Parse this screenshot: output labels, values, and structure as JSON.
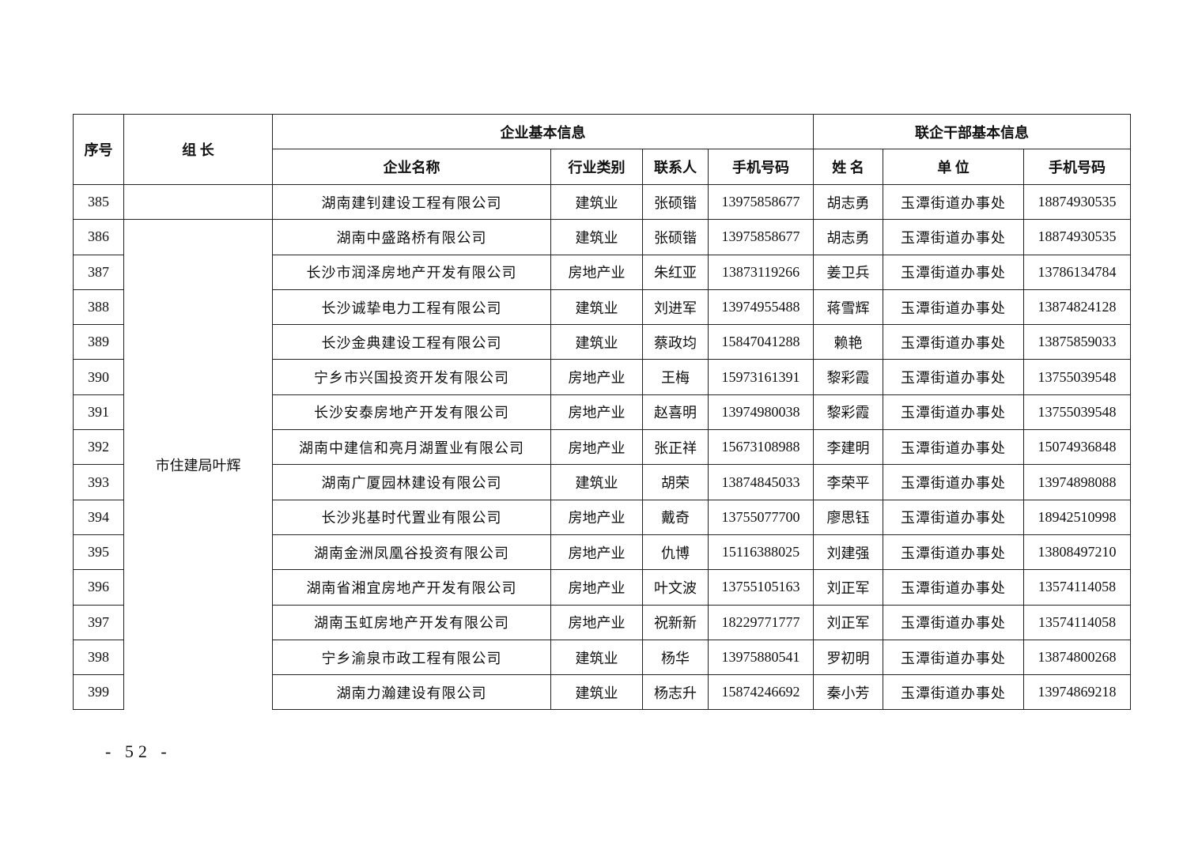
{
  "table": {
    "headers": {
      "seq": "序号",
      "leader": "组 长",
      "enterprise_group": "企业基本信息",
      "cadre_group": "联企干部基本信息",
      "company_name": "企业名称",
      "industry": "行业类别",
      "contact": "联系人",
      "company_phone": "手机号码",
      "cadre_name": "姓 名",
      "cadre_unit": "单 位",
      "cadre_phone": "手机号码"
    },
    "first_row": {
      "seq": "385",
      "leader": "",
      "company": "湖南建钊建设工程有限公司",
      "industry": "建筑业",
      "contact": "张硕锴",
      "phone": "13975858677",
      "cadre": "胡志勇",
      "unit": "玉潭街道办事处",
      "cadre_phone": "18874930535"
    },
    "group_leader": "市住建局叶辉",
    "rows": [
      {
        "seq": "386",
        "company": "湖南中盛路桥有限公司",
        "industry": "建筑业",
        "contact": "张硕锴",
        "phone": "13975858677",
        "cadre": "胡志勇",
        "unit": "玉潭街道办事处",
        "cadre_phone": "18874930535"
      },
      {
        "seq": "387",
        "company": "长沙市润泽房地产开发有限公司",
        "industry": "房地产业",
        "contact": "朱红亚",
        "phone": "13873119266",
        "cadre": "姜卫兵",
        "unit": "玉潭街道办事处",
        "cadre_phone": "13786134784"
      },
      {
        "seq": "388",
        "company": "长沙诚挚电力工程有限公司",
        "industry": "建筑业",
        "contact": "刘进军",
        "phone": "13974955488",
        "cadre": "蒋雪辉",
        "unit": "玉潭街道办事处",
        "cadre_phone": "13874824128"
      },
      {
        "seq": "389",
        "company": "长沙金典建设工程有限公司",
        "industry": "建筑业",
        "contact": "蔡政均",
        "phone": "15847041288",
        "cadre": "赖艳",
        "unit": "玉潭街道办事处",
        "cadre_phone": "13875859033"
      },
      {
        "seq": "390",
        "company": "宁乡市兴国投资开发有限公司",
        "industry": "房地产业",
        "contact": "王梅",
        "phone": "15973161391",
        "cadre": "黎彩霞",
        "unit": "玉潭街道办事处",
        "cadre_phone": "13755039548"
      },
      {
        "seq": "391",
        "company": "长沙安泰房地产开发有限公司",
        "industry": "房地产业",
        "contact": "赵喜明",
        "phone": "13974980038",
        "cadre": "黎彩霞",
        "unit": "玉潭街道办事处",
        "cadre_phone": "13755039548"
      },
      {
        "seq": "392",
        "company": "湖南中建信和亮月湖置业有限公司",
        "industry": "房地产业",
        "contact": "张正祥",
        "phone": "15673108988",
        "cadre": "李建明",
        "unit": "玉潭街道办事处",
        "cadre_phone": "15074936848"
      },
      {
        "seq": "393",
        "company": "湖南广厦园林建设有限公司",
        "industry": "建筑业",
        "contact": "胡荣",
        "phone": "13874845033",
        "cadre": "李荣平",
        "unit": "玉潭街道办事处",
        "cadre_phone": "13974898088"
      },
      {
        "seq": "394",
        "company": "长沙兆基时代置业有限公司",
        "industry": "房地产业",
        "contact": "戴奇",
        "phone": "13755077700",
        "cadre": "廖思钰",
        "unit": "玉潭街道办事处",
        "cadre_phone": "18942510998"
      },
      {
        "seq": "395",
        "company": "湖南金洲凤凰谷投资有限公司",
        "industry": "房地产业",
        "contact": "仇博",
        "phone": "15116388025",
        "cadre": "刘建强",
        "unit": "玉潭街道办事处",
        "cadre_phone": "13808497210"
      },
      {
        "seq": "396",
        "company": "湖南省湘宜房地产开发有限公司",
        "industry": "房地产业",
        "contact": "叶文波",
        "phone": "13755105163",
        "cadre": "刘正军",
        "unit": "玉潭街道办事处",
        "cadre_phone": "13574114058"
      },
      {
        "seq": "397",
        "company": "湖南玉虹房地产开发有限公司",
        "industry": "房地产业",
        "contact": "祝新新",
        "phone": "18229771777",
        "cadre": "刘正军",
        "unit": "玉潭街道办事处",
        "cadre_phone": "13574114058"
      },
      {
        "seq": "398",
        "company": "宁乡渝泉市政工程有限公司",
        "industry": "建筑业",
        "contact": "杨华",
        "phone": "13975880541",
        "cadre": "罗初明",
        "unit": "玉潭街道办事处",
        "cadre_phone": "13874800268"
      },
      {
        "seq": "399",
        "company": "湖南力瀚建设有限公司",
        "industry": "建筑业",
        "contact": "杨志升",
        "phone": "15874246692",
        "cadre": "秦小芳",
        "unit": "玉潭街道办事处",
        "cadre_phone": "13974869218"
      }
    ]
  },
  "page_number": "- 52 -"
}
